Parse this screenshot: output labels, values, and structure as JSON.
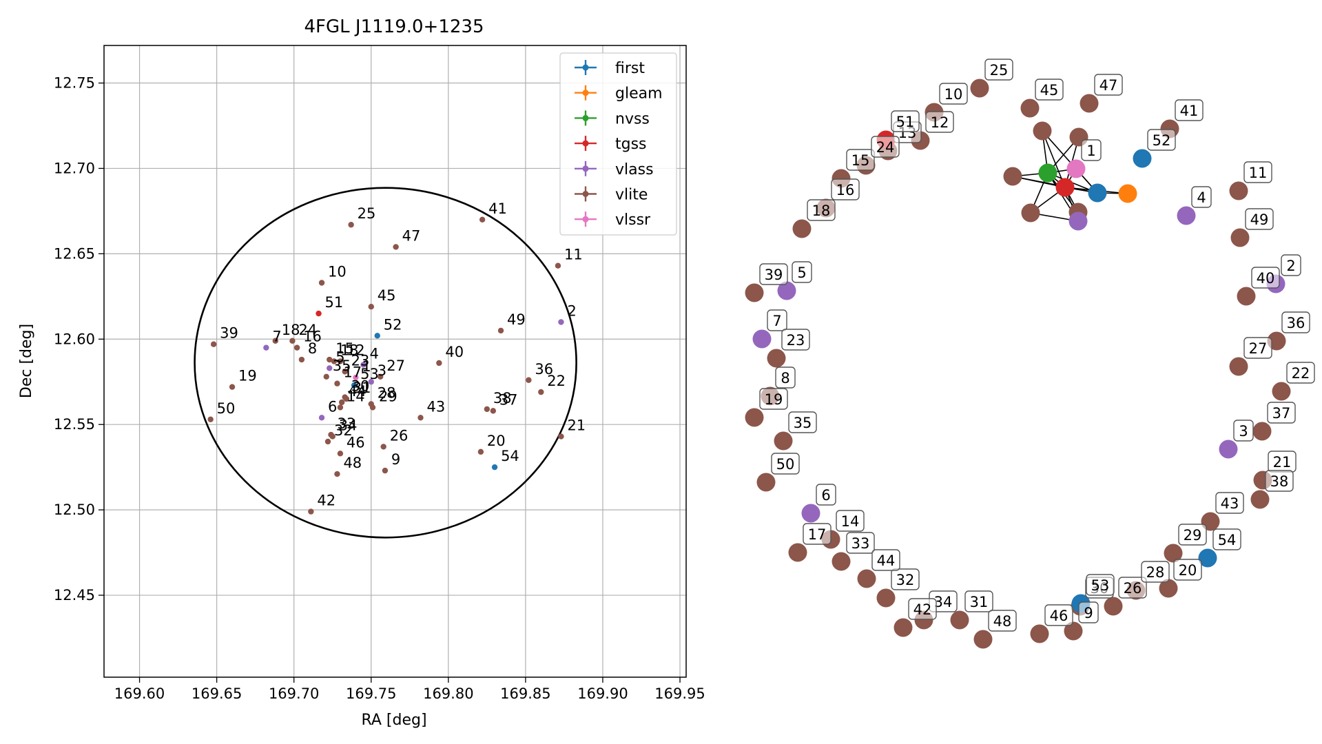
{
  "colors": {
    "first": "#1f77b4",
    "gleam": "#ff7f0e",
    "nvss": "#2ca02c",
    "tgss": "#d62728",
    "vlass": "#9467bd",
    "vlite": "#8c564b",
    "vlssr": "#e377c2",
    "circle": "#000000",
    "grid": "#b0b0b0"
  },
  "chart_data": [
    {
      "type": "scatter",
      "title": "4FGL J1119.0+1235",
      "xlabel": "RA [deg]",
      "ylabel": "Dec [deg]",
      "xlim": [
        169.577,
        169.954
      ],
      "ylim": [
        12.402,
        12.772
      ],
      "xticks": [
        169.6,
        169.65,
        169.7,
        169.75,
        169.8,
        169.85,
        169.9,
        169.95
      ],
      "xtick_labels": [
        "169.60",
        "169.65",
        "169.70",
        "169.75",
        "169.80",
        "169.85",
        "169.90",
        "169.95"
      ],
      "yticks": [
        12.45,
        12.5,
        12.55,
        12.6,
        12.65,
        12.7,
        12.75
      ],
      "ytick_labels": [
        "12.45",
        "12.50",
        "12.55",
        "12.60",
        "12.65",
        "12.70",
        "12.75"
      ],
      "grid": true,
      "legend_position": "top-right",
      "legend": [
        "first",
        "gleam",
        "nvss",
        "tgss",
        "vlass",
        "vlite",
        "vlssr"
      ],
      "ellipse": {
        "center": [
          169.7593,
          12.5862
        ],
        "semi_axes": [
          0.1236,
          0.1024
        ]
      },
      "points": [
        {
          "label": "1",
          "survey": "vlssr",
          "x": 169.74,
          "y": 12.5775
        },
        {
          "label": "2",
          "survey": "vlass",
          "x": 169.873,
          "y": 12.61
        },
        {
          "label": "3",
          "survey": "vlass",
          "x": 169.75,
          "y": 12.575
        },
        {
          "label": "4",
          "survey": "vlass",
          "x": 169.745,
          "y": 12.585
        },
        {
          "label": "5",
          "survey": "vlass",
          "x": 169.723,
          "y": 12.583
        },
        {
          "label": "6",
          "survey": "vlass",
          "x": 169.718,
          "y": 12.554
        },
        {
          "label": "7",
          "survey": "vlass",
          "x": 169.682,
          "y": 12.595
        },
        {
          "label": "8",
          "survey": "vlite",
          "x": 169.705,
          "y": 12.588
        },
        {
          "label": "9",
          "survey": "vlite",
          "x": 169.759,
          "y": 12.523
        },
        {
          "label": "10",
          "survey": "vlite",
          "x": 169.718,
          "y": 12.633
        },
        {
          "label": "11",
          "survey": "vlite",
          "x": 169.871,
          "y": 12.643
        },
        {
          "label": "12",
          "survey": "vlite",
          "x": 169.73,
          "y": 12.587
        },
        {
          "label": "13",
          "survey": "vlite",
          "x": 169.726,
          "y": 12.587
        },
        {
          "label": "14",
          "survey": "vlite",
          "x": 169.73,
          "y": 12.56
        },
        {
          "label": "15",
          "survey": "vlite",
          "x": 169.723,
          "y": 12.588
        },
        {
          "label": "16",
          "survey": "vlite",
          "x": 169.702,
          "y": 12.595
        },
        {
          "label": "17",
          "survey": "vlite",
          "x": 169.728,
          "y": 12.574
        },
        {
          "label": "18",
          "survey": "vlite",
          "x": 169.688,
          "y": 12.599
        },
        {
          "label": "19",
          "survey": "vlite",
          "x": 169.66,
          "y": 12.572
        },
        {
          "label": "20",
          "survey": "vlite",
          "x": 169.821,
          "y": 12.534
        },
        {
          "label": "21",
          "survey": "vlite",
          "x": 169.873,
          "y": 12.543
        },
        {
          "label": "22",
          "survey": "vlite",
          "x": 169.86,
          "y": 12.569
        },
        {
          "label": "23",
          "survey": "vlite",
          "x": 169.733,
          "y": 12.581
        },
        {
          "label": "24",
          "survey": "vlite",
          "x": 169.699,
          "y": 12.599
        },
        {
          "label": "25",
          "survey": "vlite",
          "x": 169.737,
          "y": 12.667
        },
        {
          "label": "26",
          "survey": "vlite",
          "x": 169.758,
          "y": 12.537
        },
        {
          "label": "27",
          "survey": "vlite",
          "x": 169.756,
          "y": 12.578
        },
        {
          "label": "28",
          "survey": "vlite",
          "x": 169.75,
          "y": 12.562
        },
        {
          "label": "29",
          "survey": "vlite",
          "x": 169.751,
          "y": 12.56
        },
        {
          "label": "30",
          "survey": "vlite",
          "x": 169.733,
          "y": 12.566
        },
        {
          "label": "31",
          "survey": "vlite",
          "x": 169.734,
          "y": 12.565
        },
        {
          "label": "32",
          "survey": "vlite",
          "x": 169.722,
          "y": 12.54
        },
        {
          "label": "33",
          "survey": "vlite",
          "x": 169.724,
          "y": 12.544
        },
        {
          "label": "34",
          "survey": "vlite",
          "x": 169.725,
          "y": 12.543
        },
        {
          "label": "35",
          "survey": "vlite",
          "x": 169.721,
          "y": 12.578
        },
        {
          "label": "36",
          "survey": "vlite",
          "x": 169.852,
          "y": 12.576
        },
        {
          "label": "37",
          "survey": "vlite",
          "x": 169.829,
          "y": 12.558
        },
        {
          "label": "38",
          "survey": "vlite",
          "x": 169.825,
          "y": 12.559
        },
        {
          "label": "39",
          "survey": "vlite",
          "x": 169.648,
          "y": 12.597
        },
        {
          "label": "40",
          "survey": "vlite",
          "x": 169.794,
          "y": 12.586
        },
        {
          "label": "41",
          "survey": "vlite",
          "x": 169.822,
          "y": 12.67
        },
        {
          "label": "42",
          "survey": "vlite",
          "x": 169.711,
          "y": 12.499
        },
        {
          "label": "43",
          "survey": "vlite",
          "x": 169.782,
          "y": 12.554
        },
        {
          "label": "44",
          "survey": "vlite",
          "x": 169.731,
          "y": 12.563
        },
        {
          "label": "45",
          "survey": "vlite",
          "x": 169.75,
          "y": 12.619
        },
        {
          "label": "46",
          "survey": "vlite",
          "x": 169.73,
          "y": 12.533
        },
        {
          "label": "47",
          "survey": "vlite",
          "x": 169.766,
          "y": 12.654
        },
        {
          "label": "48",
          "survey": "vlite",
          "x": 169.728,
          "y": 12.521
        },
        {
          "label": "49",
          "survey": "vlite",
          "x": 169.834,
          "y": 12.605
        },
        {
          "label": "50",
          "survey": "vlite",
          "x": 169.646,
          "y": 12.553
        },
        {
          "label": "51",
          "survey": "tgss",
          "x": 169.716,
          "y": 12.615
        },
        {
          "label": "52",
          "survey": "first",
          "x": 169.754,
          "y": 12.602
        },
        {
          "label": "53",
          "survey": "first",
          "x": 169.739,
          "y": 12.573
        },
        {
          "label": "54",
          "survey": "first",
          "x": 169.83,
          "y": 12.525
        }
      ]
    },
    {
      "type": "network",
      "nodes": [
        {
          "label": "1",
          "survey": "vlssr",
          "boxed": true
        },
        {
          "label": "2",
          "survey": "vlass",
          "boxed": true
        },
        {
          "label": "3",
          "survey": "vlass",
          "boxed": true
        },
        {
          "label": "4",
          "survey": "vlass",
          "boxed": true
        },
        {
          "label": "5",
          "survey": "vlass",
          "boxed": true
        },
        {
          "label": "6",
          "survey": "vlass",
          "boxed": true
        },
        {
          "label": "7",
          "survey": "vlass",
          "boxed": true
        },
        {
          "label": "8",
          "survey": "vlite",
          "boxed": true
        },
        {
          "label": "9",
          "survey": "vlite",
          "boxed": true
        },
        {
          "label": "10",
          "survey": "vlite",
          "boxed": true
        },
        {
          "label": "11",
          "survey": "vlite",
          "boxed": true
        },
        {
          "label": "12",
          "survey": "vlite",
          "boxed": true
        },
        {
          "label": "13",
          "survey": "vlite",
          "boxed": true
        },
        {
          "label": "14",
          "survey": "vlite",
          "boxed": true
        },
        {
          "label": "15",
          "survey": "vlite",
          "boxed": true
        },
        {
          "label": "16",
          "survey": "vlite",
          "boxed": true
        },
        {
          "label": "17",
          "survey": "vlite",
          "boxed": true
        },
        {
          "label": "18",
          "survey": "vlite",
          "boxed": true
        },
        {
          "label": "19",
          "survey": "vlite",
          "boxed": true
        },
        {
          "label": "20",
          "survey": "vlite",
          "boxed": true
        },
        {
          "label": "21",
          "survey": "vlite",
          "boxed": true
        },
        {
          "label": "22",
          "survey": "vlite",
          "boxed": true
        },
        {
          "label": "23",
          "survey": "vlite",
          "boxed": true
        },
        {
          "label": "24",
          "survey": "vlite",
          "boxed": true
        },
        {
          "label": "25",
          "survey": "vlite",
          "boxed": true
        },
        {
          "label": "26",
          "survey": "vlite",
          "boxed": true
        },
        {
          "label": "27",
          "survey": "vlite",
          "boxed": true
        },
        {
          "label": "28",
          "survey": "vlite",
          "boxed": true
        },
        {
          "label": "29",
          "survey": "vlite",
          "boxed": true
        },
        {
          "label": "30",
          "survey": "vlite",
          "boxed": true
        },
        {
          "label": "31",
          "survey": "vlite",
          "boxed": true
        },
        {
          "label": "32",
          "survey": "vlite",
          "boxed": true
        },
        {
          "label": "33",
          "survey": "vlite",
          "boxed": true
        },
        {
          "label": "34",
          "survey": "vlite",
          "boxed": true
        },
        {
          "label": "35",
          "survey": "vlite",
          "boxed": true
        },
        {
          "label": "36",
          "survey": "vlite",
          "boxed": true
        },
        {
          "label": "37",
          "survey": "vlite",
          "boxed": true
        },
        {
          "label": "38",
          "survey": "vlite",
          "boxed": true
        },
        {
          "label": "39",
          "survey": "vlite",
          "boxed": true
        },
        {
          "label": "40",
          "survey": "vlite",
          "boxed": true
        },
        {
          "label": "41",
          "survey": "vlite",
          "boxed": true
        },
        {
          "label": "42",
          "survey": "vlite",
          "boxed": true
        },
        {
          "label": "43",
          "survey": "vlite",
          "boxed": true
        },
        {
          "label": "44",
          "survey": "vlite",
          "boxed": true
        },
        {
          "label": "45",
          "survey": "vlite",
          "boxed": true
        },
        {
          "label": "46",
          "survey": "vlite",
          "boxed": true
        },
        {
          "label": "47",
          "survey": "vlite",
          "boxed": true
        },
        {
          "label": "48",
          "survey": "vlite",
          "boxed": true
        },
        {
          "label": "49",
          "survey": "vlite",
          "boxed": true
        },
        {
          "label": "50",
          "survey": "vlite",
          "boxed": true
        },
        {
          "label": "51",
          "survey": "tgss",
          "boxed": true
        },
        {
          "label": "52",
          "survey": "first",
          "boxed": true
        },
        {
          "label": "53",
          "survey": "first",
          "boxed": true
        },
        {
          "label": "54",
          "survey": "first",
          "boxed": true
        },
        {
          "label": "",
          "survey": "vlite",
          "boxed": false
        },
        {
          "label": "",
          "survey": "vlite",
          "boxed": false
        },
        {
          "label": "",
          "survey": "vlite",
          "boxed": false
        },
        {
          "label": "",
          "survey": "vlite",
          "boxed": false
        },
        {
          "label": "",
          "survey": "vlite",
          "boxed": false
        },
        {
          "label": "",
          "survey": "nvss",
          "boxed": false
        },
        {
          "label": "",
          "survey": "tgss",
          "boxed": false
        },
        {
          "label": "",
          "survey": "first",
          "boxed": false
        },
        {
          "label": "",
          "survey": "gleam",
          "boxed": false
        },
        {
          "label": "",
          "survey": "vlass",
          "boxed": false
        }
      ],
      "edges": [
        [
          54,
          59
        ],
        [
          54,
          60
        ],
        [
          54,
          61
        ],
        [
          55,
          59
        ],
        [
          55,
          60
        ],
        [
          56,
          59
        ],
        [
          56,
          60
        ],
        [
          56,
          61
        ],
        [
          57,
          59
        ],
        [
          57,
          60
        ],
        [
          57,
          63
        ],
        [
          58,
          60
        ],
        [
          58,
          59
        ],
        [
          59,
          60
        ],
        [
          59,
          61
        ],
        [
          59,
          63
        ],
        [
          60,
          61
        ],
        [
          60,
          62
        ],
        [
          60,
          63
        ],
        [
          61,
          62
        ],
        [
          0,
          59
        ],
        [
          0,
          60
        ],
        [
          0,
          61
        ]
      ]
    }
  ]
}
